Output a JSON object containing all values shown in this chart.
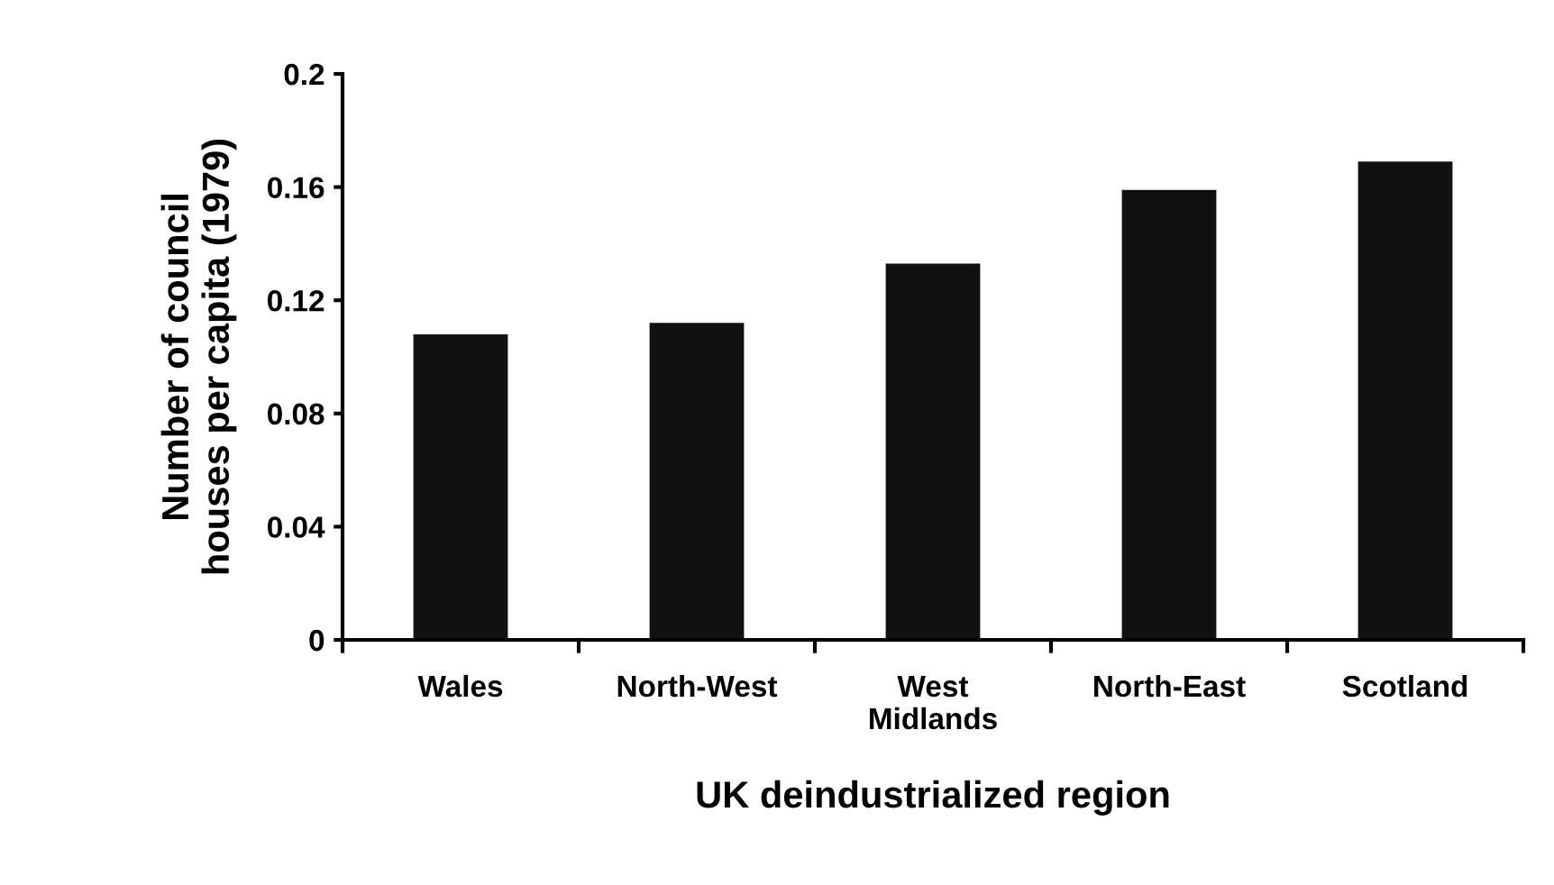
{
  "chart_data": {
    "type": "bar",
    "categories": [
      "Wales",
      "North-West",
      "West\nMidlands",
      "North-East",
      "Scotland"
    ],
    "values": [
      0.108,
      0.112,
      0.133,
      0.159,
      0.169
    ],
    "color": "#111111",
    "xlabel": "UK deindustrialized region",
    "ylabel": "Number of council\nhouses per capita (1979)",
    "ylim": [
      0,
      0.2
    ],
    "yticks": [
      0,
      0.04,
      0.08,
      0.12,
      0.16,
      0.2
    ],
    "grid": false
  }
}
